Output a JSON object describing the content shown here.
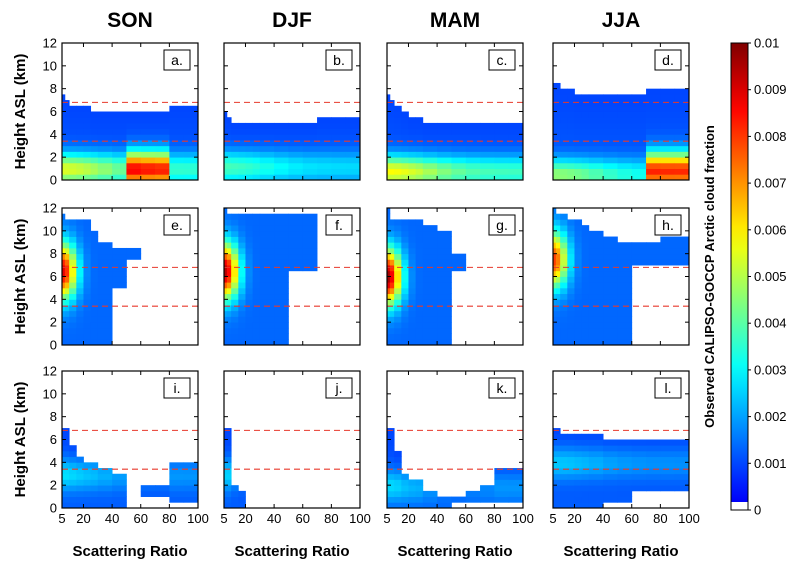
{
  "chart_data": {
    "type": "heatmap",
    "seasons": [
      "SON",
      "DJF",
      "MAM",
      "JJA"
    ],
    "xlabel": "Scattering Ratio",
    "ylabel": "Height ASL (km)",
    "x_edges": [
      5,
      7,
      10,
      15,
      20,
      25,
      30,
      40,
      50,
      60,
      70,
      80,
      90,
      100
    ],
    "x_ticks": [
      5,
      20,
      40,
      60,
      80,
      100
    ],
    "xlim": [
      5,
      100
    ],
    "y_edges": [
      0,
      0.5,
      1,
      1.5,
      2,
      2.5,
      3,
      3.5,
      4,
      4.5,
      5,
      5.5,
      6,
      6.5,
      7,
      7.5,
      8,
      8.5,
      9,
      9.5,
      10,
      10.5,
      11,
      11.5,
      12
    ],
    "y_ticks": [
      0,
      2,
      4,
      6,
      8,
      10,
      12
    ],
    "ylim": [
      0,
      12
    ],
    "reference_heights_km": [
      3.4,
      6.8
    ],
    "colorbar": {
      "label": "Observed CALIPSO-GOCCP Arctic cloud fraction",
      "range": [
        0,
        0.01
      ],
      "ticks": [
        "0",
        "0.001",
        "0.002",
        "0.003",
        "0.004",
        "0.005",
        "0.006",
        "0.007",
        "0.008",
        "0.009",
        "0.01"
      ]
    },
    "panel_letters": [
      "a.",
      "b.",
      "c.",
      "d.",
      "e.",
      "f.",
      "g.",
      "h.",
      "i.",
      "j.",
      "k.",
      "l."
    ],
    "rows": [
      {
        "row": "top",
        "panels": [
          {
            "season": "SON",
            "letter": "a.",
            "columns": [
              [
                0,
                7.5
              ],
              [
                0,
                7
              ],
              [
                0,
                6.5
              ],
              [
                0,
                6.5
              ],
              [
                0,
                6.5
              ],
              [
                0,
                6
              ],
              [
                0,
                6
              ],
              [
                0,
                6
              ],
              [
                0,
                6
              ],
              [
                0,
                6
              ],
              [
                0,
                6
              ],
              [
                0,
                6.5
              ],
              [
                0,
                6.5
              ]
            ],
            "peak_height": 1.0,
            "peak_max": 0.0045,
            "high_x_boost": 0.005,
            "boost_range": [
              50,
              80
            ]
          },
          {
            "season": "DJF",
            "letter": "b.",
            "columns": [
              [
                0,
                6
              ],
              [
                0,
                5.5
              ],
              [
                0,
                5
              ],
              [
                0,
                5
              ],
              [
                0,
                5
              ],
              [
                0,
                5
              ],
              [
                0,
                5
              ],
              [
                0,
                5
              ],
              [
                0,
                5
              ],
              [
                0,
                5
              ],
              [
                0,
                5.5
              ],
              [
                0,
                5.5
              ],
              [
                0,
                5.5
              ]
            ],
            "peak_height": 1.2,
            "peak_max": 0.0028
          },
          {
            "season": "MAM",
            "letter": "c.",
            "columns": [
              [
                0,
                7.5
              ],
              [
                0,
                7
              ],
              [
                0,
                6.5
              ],
              [
                0,
                6
              ],
              [
                0,
                5.5
              ],
              [
                0,
                5.5
              ],
              [
                0,
                5
              ],
              [
                0,
                5
              ],
              [
                0,
                5
              ],
              [
                0,
                5
              ],
              [
                0,
                5
              ],
              [
                0,
                5
              ],
              [
                0,
                5
              ]
            ],
            "peak_height": 0.8,
            "peak_max": 0.0048
          },
          {
            "season": "JJA",
            "letter": "d.",
            "columns": [
              [
                0,
                8.5
              ],
              [
                0,
                8.5
              ],
              [
                0,
                8
              ],
              [
                0,
                8
              ],
              [
                0,
                7.5
              ],
              [
                0,
                7.5
              ],
              [
                0,
                7.5
              ],
              [
                0,
                7.5
              ],
              [
                0,
                7.5
              ],
              [
                0,
                7.5
              ],
              [
                0,
                8
              ],
              [
                0,
                8
              ],
              [
                0,
                8
              ]
            ],
            "peak_height": 0.5,
            "peak_max": 0.0035,
            "high_x_boost": 0.0055,
            "boost_range": [
              70,
              100
            ]
          }
        ]
      },
      {
        "row": "middle",
        "panels": [
          {
            "season": "SON",
            "letter": "e.",
            "columns": [
              [
                0,
                11.5
              ],
              [
                0,
                11
              ],
              [
                0,
                11
              ],
              [
                0,
                11
              ],
              [
                0,
                11
              ],
              [
                0,
                10
              ],
              [
                0,
                9
              ],
              [
                5,
                8.5
              ],
              [
                7.5,
                8.5
              ]
            ],
            "peak_height": 6.5,
            "peak_max": 0.0082
          },
          {
            "season": "DJF",
            "letter": "f.",
            "columns": [
              [
                0,
                12
              ],
              [
                0,
                11.5
              ],
              [
                0,
                11.5
              ],
              [
                0,
                11.5
              ],
              [
                0,
                11.5
              ],
              [
                0,
                11.5
              ],
              [
                0,
                11.5
              ],
              [
                0,
                11.5
              ],
              [
                6.5,
                11.5
              ],
              [
                6.5,
                11.5
              ]
            ],
            "peak_height": 6.5,
            "peak_max": 0.0088
          },
          {
            "season": "MAM",
            "letter": "g.",
            "columns": [
              [
                0,
                12
              ],
              [
                0,
                11
              ],
              [
                0,
                11
              ],
              [
                0,
                11
              ],
              [
                0,
                11
              ],
              [
                0,
                11
              ],
              [
                0,
                10.5
              ],
              [
                0,
                10
              ],
              [
                6.5,
                8
              ]
            ],
            "peak_height": 6.0,
            "peak_max": 0.009
          },
          {
            "season": "JJA",
            "letter": "h.",
            "columns": [
              [
                0,
                12
              ],
              [
                0,
                11.5
              ],
              [
                0,
                11.5
              ],
              [
                0,
                11
              ],
              [
                0,
                11
              ],
              [
                0,
                10.5
              ],
              [
                0,
                10
              ],
              [
                0,
                9.5
              ],
              [
                0,
                9
              ],
              [
                7,
                9
              ],
              [
                7,
                9
              ],
              [
                7,
                9.5
              ],
              [
                7,
                9.5
              ]
            ],
            "peak_height": 7.5,
            "peak_max": 0.0072
          }
        ]
      },
      {
        "row": "bottom",
        "panels": [
          {
            "season": "SON",
            "letter": "i.",
            "columns": [
              [
                0,
                7.2
              ],
              [
                0,
                7
              ],
              [
                0,
                5.5
              ],
              [
                0,
                4.5
              ],
              [
                0,
                4
              ],
              [
                0,
                4
              ],
              [
                0,
                3.5
              ],
              [
                0,
                3
              ],
              [],
              [
                1,
                2
              ],
              [
                1,
                2
              ],
              [
                0.5,
                4.2
              ],
              [
                0.5,
                4.2
              ]
            ],
            "peak_height": 3,
            "peak_max": 0.0018
          },
          {
            "season": "DJF",
            "letter": "j.",
            "columns": [
              [
                0,
                7.2
              ],
              [
                0,
                7.2
              ],
              [
                0,
                2
              ],
              [
                0,
                1.5
              ]
            ],
            "peak_height": 3,
            "peak_max": 0.0016
          },
          {
            "season": "MAM",
            "letter": "k.",
            "columns": [
              [
                0,
                7.2
              ],
              [
                0,
                7
              ],
              [
                0,
                5
              ],
              [
                0,
                3
              ],
              [
                0,
                2.5
              ],
              [
                0,
                2.5
              ],
              [
                0,
                1.5
              ],
              [
                0,
                1
              ],
              [
                0.5,
                1
              ],
              [
                0.5,
                1.5
              ],
              [
                0.5,
                2
              ],
              [
                0.5,
                3.5
              ],
              [
                0.5,
                3.5
              ]
            ],
            "peak_height": 2,
            "peak_max": 0.0016
          },
          {
            "season": "JJA",
            "letter": "l.",
            "columns": [
              [
                0,
                7
              ],
              [
                0,
                7
              ],
              [
                0,
                6.8
              ],
              [
                0,
                6.8
              ],
              [
                0,
                6.5
              ],
              [
                0,
                6.5
              ],
              [
                0,
                6.5
              ],
              [
                0.5,
                6
              ],
              [
                0.5,
                6
              ],
              [
                1.5,
                6
              ],
              [
                1.5,
                6
              ],
              [
                1.5,
                6.2
              ],
              [
                1.5,
                6.2
              ]
            ],
            "peak_height": 4,
            "peak_max": 0.0016
          }
        ]
      }
    ]
  }
}
